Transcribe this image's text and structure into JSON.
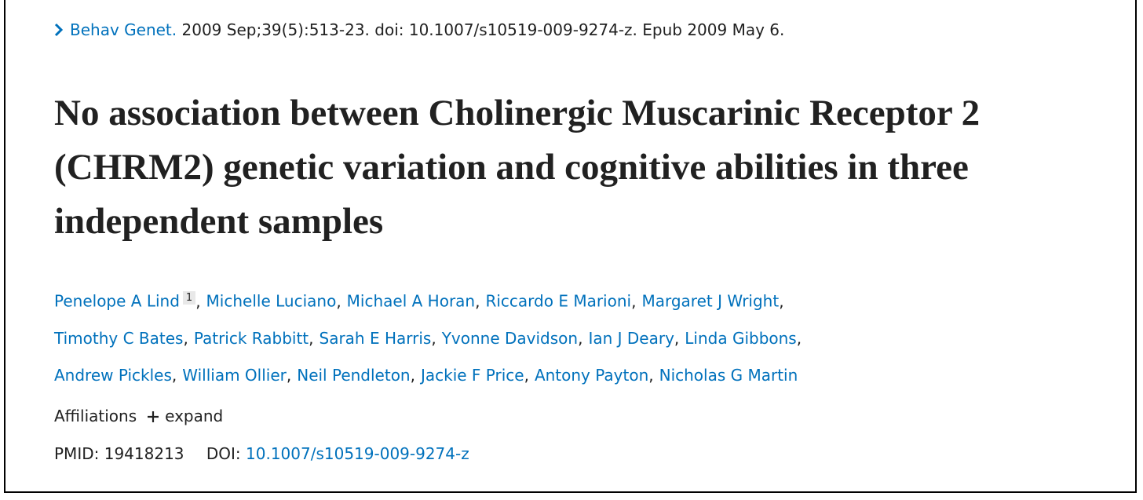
{
  "citation": {
    "journal": "Behav Genet.",
    "details": "2009 Sep;39(5):513-23. doi: 10.1007/s10519-009-9274-z. Epub 2009 May 6."
  },
  "title": "No association between Cholinergic Muscarinic Receptor 2 (CHRM2) genetic variation and cognitive abilities in three independent samples",
  "authors": {
    "separator": ",",
    "lines": [
      [
        {
          "name": "Penelope A Lind",
          "affiliation": "1"
        },
        {
          "name": "Michelle Luciano"
        },
        {
          "name": "Michael A Horan"
        },
        {
          "name": "Riccardo E Marioni"
        },
        {
          "name": "Margaret J Wright"
        }
      ],
      [
        {
          "name": "Timothy C Bates"
        },
        {
          "name": "Patrick Rabbitt"
        },
        {
          "name": "Sarah E Harris"
        },
        {
          "name": "Yvonne Davidson"
        },
        {
          "name": "Ian J Deary"
        },
        {
          "name": "Linda Gibbons"
        }
      ],
      [
        {
          "name": "Andrew Pickles"
        },
        {
          "name": "William Ollier"
        },
        {
          "name": "Neil Pendleton"
        },
        {
          "name": "Jackie F Price"
        },
        {
          "name": "Antony Payton"
        },
        {
          "name": "Nicholas G Martin"
        }
      ]
    ]
  },
  "affiliations": {
    "label": "Affiliations",
    "toggle": "expand"
  },
  "identifiers": {
    "pmid_label": "PMID:",
    "pmid": "19418213",
    "doi_label": "DOI:",
    "doi": "10.1007/s10519-009-9274-z"
  }
}
